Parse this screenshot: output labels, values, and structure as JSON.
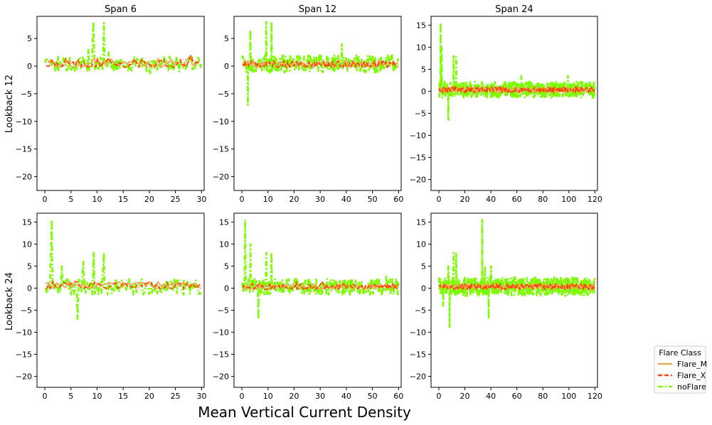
{
  "figure": {
    "xlabel": "Mean Vertical Current Density",
    "row_labels": [
      "Lookback 12",
      "Lookback 24"
    ],
    "col_titles": [
      "Span 6",
      "Span 12",
      "Span 24"
    ]
  },
  "legend": {
    "title": "Flare Class",
    "placement": "lower-right, outside plot grid",
    "items": [
      {
        "name": "Flare_M",
        "color": "#f4a460",
        "style": "solid"
      },
      {
        "name": "Flare_X",
        "color": "#ff4500",
        "style": "dashed"
      },
      {
        "name": "noFlare",
        "color": "#7cfc00",
        "style": "dashdot"
      }
    ]
  },
  "chart_data": [
    {
      "type": "line",
      "panel": "Span 6 / Lookback 12",
      "title": "Span 6",
      "ylabel": "Lookback 12",
      "xlim": [
        -1.5,
        30.5
      ],
      "ylim": [
        -22.5,
        9.0
      ],
      "xticks": [
        0,
        5,
        10,
        15,
        20,
        25,
        30
      ],
      "yticks": [
        -20,
        -15,
        -10,
        -5,
        0,
        5
      ],
      "series": [
        {
          "name": "noFlare",
          "band": [
            -1.0,
            1.8
          ],
          "x_max": 29,
          "spikes": [
            [
              9,
              8.0
            ],
            [
              11,
              7.8
            ],
            [
              8,
              3.0
            ],
            [
              12,
              2.5
            ],
            [
              20,
              -1.5
            ]
          ]
        },
        {
          "name": "Flare_M",
          "band": [
            -0.3,
            1.5
          ],
          "x_max": 29,
          "spikes": [
            [
              27,
              1.8
            ]
          ]
        },
        {
          "name": "Flare_X",
          "band": [
            -0.3,
            1.5
          ],
          "x_max": 29,
          "spikes": [
            [
              27,
              1.9
            ]
          ]
        }
      ]
    },
    {
      "type": "line",
      "panel": "Span 12 / Lookback 12",
      "title": "Span 12",
      "xlim": [
        -3,
        61
      ],
      "ylim": [
        -22.5,
        9.0
      ],
      "xticks": [
        0,
        10,
        20,
        30,
        40,
        50,
        60
      ],
      "yticks": [
        -20,
        -15,
        -10,
        -5,
        0,
        5
      ],
      "series": [
        {
          "name": "noFlare",
          "band": [
            -1.2,
            2.0
          ],
          "x_max": 59,
          "spikes": [
            [
              2,
              -7.0
            ],
            [
              3,
              6.5
            ],
            [
              9,
              8.0
            ],
            [
              11,
              8.0
            ],
            [
              38,
              4.0
            ]
          ]
        },
        {
          "name": "Flare_M",
          "band": [
            -0.3,
            1.0
          ],
          "x_max": 59,
          "spikes": []
        },
        {
          "name": "Flare_X",
          "band": [
            -0.3,
            1.0
          ],
          "x_max": 59,
          "spikes": []
        }
      ]
    },
    {
      "type": "line",
      "panel": "Span 24 / Lookback 12",
      "title": "Span 24",
      "xlim": [
        -6,
        122
      ],
      "ylim": [
        -22.5,
        17.0
      ],
      "xticks": [
        0,
        20,
        40,
        60,
        80,
        100,
        120
      ],
      "yticks": [
        -20,
        -15,
        -10,
        -5,
        0,
        5,
        10,
        15
      ],
      "series": [
        {
          "name": "noFlare",
          "band": [
            -1.5,
            2.2
          ],
          "x_max": 119,
          "spikes": [
            [
              1,
              15.5
            ],
            [
              2,
              10.0
            ],
            [
              7,
              -6.5
            ],
            [
              11,
              8.0
            ],
            [
              13,
              7.8
            ],
            [
              63,
              3.5
            ],
            [
              99,
              3.5
            ]
          ]
        },
        {
          "name": "Flare_M",
          "band": [
            -0.3,
            1.0
          ],
          "x_max": 119,
          "spikes": []
        },
        {
          "name": "Flare_X",
          "band": [
            -0.3,
            1.0
          ],
          "x_max": 119,
          "spikes": []
        }
      ]
    },
    {
      "type": "line",
      "panel": "Span 6 / Lookback 24",
      "title": "",
      "ylabel": "Lookback 24",
      "xlim": [
        -1.5,
        30.5
      ],
      "ylim": [
        -22.5,
        17.0
      ],
      "xticks": [
        0,
        5,
        10,
        15,
        20,
        25,
        30
      ],
      "yticks": [
        -20,
        -15,
        -10,
        -5,
        0,
        5,
        10,
        15
      ],
      "series": [
        {
          "name": "noFlare",
          "band": [
            -1.5,
            2.2
          ],
          "x_max": 29,
          "spikes": [
            [
              1,
              15.5
            ],
            [
              3,
              5.0
            ],
            [
              6,
              -7.0
            ],
            [
              7,
              6.0
            ],
            [
              9,
              8.0
            ],
            [
              11,
              8.0
            ]
          ]
        },
        {
          "name": "Flare_M",
          "band": [
            -0.3,
            1.5
          ],
          "x_max": 29,
          "spikes": []
        },
        {
          "name": "Flare_X",
          "band": [
            -0.3,
            1.5
          ],
          "x_max": 29,
          "spikes": [
            [
              1,
              1.5
            ],
            [
              5,
              1.5
            ]
          ]
        }
      ]
    },
    {
      "type": "line",
      "panel": "Span 12 / Lookback 24",
      "title": "",
      "xlim": [
        -3,
        61
      ],
      "ylim": [
        -22.5,
        17.0
      ],
      "xticks": [
        0,
        10,
        20,
        30,
        40,
        50,
        60
      ],
      "yticks": [
        -20,
        -15,
        -10,
        -5,
        0,
        5,
        10,
        15
      ],
      "series": [
        {
          "name": "noFlare",
          "band": [
            -1.5,
            2.2
          ],
          "x_max": 59,
          "spikes": [
            [
              1,
              15.5
            ],
            [
              3,
              10.0
            ],
            [
              6,
              -7.0
            ],
            [
              9,
              8.0
            ],
            [
              11,
              8.0
            ],
            [
              55,
              3.0
            ]
          ]
        },
        {
          "name": "Flare_M",
          "band": [
            -0.3,
            1.0
          ],
          "x_max": 59,
          "spikes": []
        },
        {
          "name": "Flare_X",
          "band": [
            -0.3,
            1.0
          ],
          "x_max": 59,
          "spikes": [
            [
              20,
              1.5
            ],
            [
              30,
              1.5
            ]
          ]
        }
      ]
    },
    {
      "type": "line",
      "panel": "Span 24 / Lookback 24",
      "title": "",
      "xlim": [
        -6,
        122
      ],
      "ylim": [
        -22.5,
        17.0
      ],
      "xticks": [
        0,
        20,
        40,
        60,
        80,
        100,
        120
      ],
      "yticks": [
        -20,
        -15,
        -10,
        -5,
        0,
        5,
        10,
        15
      ],
      "series": [
        {
          "name": "noFlare",
          "band": [
            -1.8,
            2.5
          ],
          "x_max": 119,
          "spikes": [
            [
              3,
              -4.0
            ],
            [
              7,
              5.0
            ],
            [
              8,
              -9.0
            ],
            [
              11,
              8.0
            ],
            [
              13,
              8.0
            ],
            [
              33,
              15.5
            ],
            [
              35,
              5.0
            ],
            [
              38,
              -7.0
            ],
            [
              40,
              5.0
            ]
          ]
        },
        {
          "name": "Flare_M",
          "band": [
            -0.3,
            1.0
          ],
          "x_max": 119,
          "spikes": []
        },
        {
          "name": "Flare_X",
          "band": [
            -0.3,
            1.0
          ],
          "x_max": 119,
          "spikes": []
        }
      ]
    }
  ]
}
